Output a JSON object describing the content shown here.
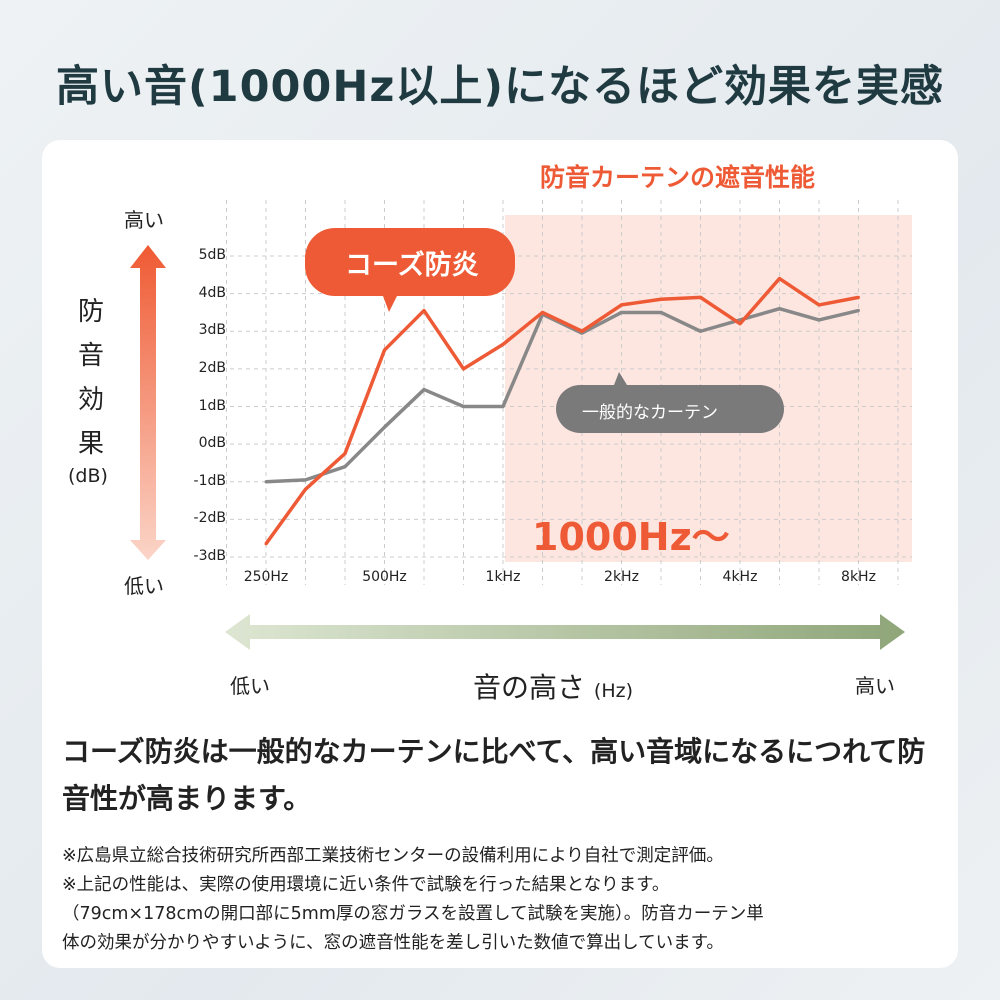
{
  "title": "高い音(1000Hz以上)になるほど効果を実感",
  "chart_data": {
    "type": "line",
    "title": "防音カーテンの遮音性能",
    "ylabel_chars": [
      "防",
      "音",
      "効",
      "果"
    ],
    "ylabel_unit": "(dB)",
    "y_high": "高い",
    "y_low": "低い",
    "xlabel": "音の高さ",
    "xlabel_unit": "(Hz)",
    "x_low": "低い",
    "x_high": "高い",
    "ylim": [
      -3,
      5
    ],
    "yticks": [
      "5dB",
      "4dB",
      "3dB",
      "2dB",
      "1dB",
      "0dB",
      "-1dB",
      "-2dB",
      "-3dB"
    ],
    "x": [
      250,
      315,
      400,
      500,
      630,
      800,
      1000,
      1250,
      1600,
      2000,
      2500,
      3150,
      4000,
      5000,
      6300,
      8000
    ],
    "xticks": [
      "250Hz",
      "500Hz",
      "1kHz",
      "2kHz",
      "4kHz",
      "8kHz"
    ],
    "highlight_region": {
      "from_hz": 1000,
      "label": "1000Hz〜"
    },
    "grid": true,
    "series": [
      {
        "name": "コーズ防炎",
        "color": "#ee5a35",
        "values": [
          -2.65,
          -1.2,
          -0.25,
          2.5,
          3.55,
          2.0,
          2.65,
          3.5,
          3.0,
          3.7,
          3.85,
          3.9,
          3.2,
          4.4,
          3.7,
          3.9
        ]
      },
      {
        "name": "一般的なカーテン",
        "color": "#888888",
        "values": [
          -1.0,
          -0.95,
          -0.6,
          0.45,
          1.45,
          1.0,
          1.0,
          3.45,
          2.95,
          3.5,
          3.5,
          3.0,
          3.3,
          3.6,
          3.3,
          3.55
        ]
      }
    ]
  },
  "summary": "コーズ防炎は一般的なカーテンに比べて、高い音域になるにつれて防音性が高まります。",
  "notes": [
    "※広島県立総合技術研究所西部工業技術センターの設備利用により自社で測定評価。",
    "※上記の性能は、実際の使用環境に近い条件で試験を行った結果となります。",
    "（79cm×178cmの開口部に5mm厚の窓ガラスを設置して試験を実施）。防音カーテン単",
    "体の効果が分かりやすいように、窓の遮音性能を差し引いた数値で算出しています。"
  ],
  "colors": {
    "accent": "#ee5a35",
    "highlight_bg": "#fde6e0",
    "gray": "#888888",
    "green": "#9aaf85",
    "title": "#1f3a40"
  }
}
